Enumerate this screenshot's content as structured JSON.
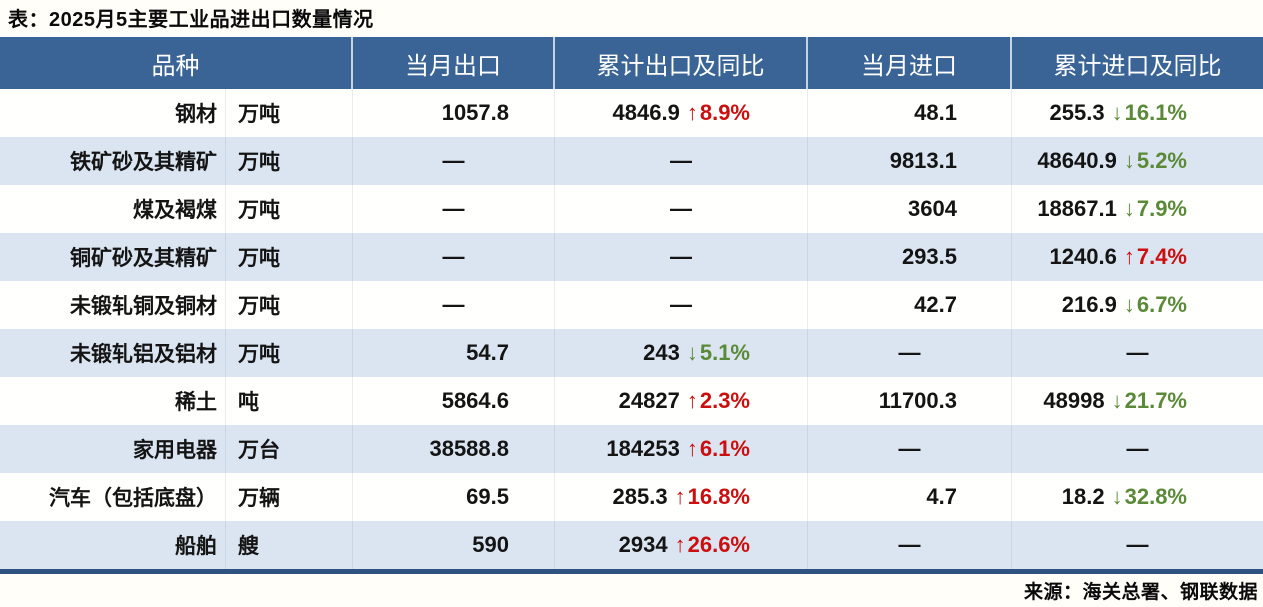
{
  "title": "表：2025月5主要工业品进出口数量情况",
  "source": "来源：海关总署、钢联数据",
  "colors": {
    "header_bg": "#3a6496",
    "stripe_bg": "#dbe5f1",
    "white_row_bg": "#fffffd",
    "up_red": "#cb0e0e",
    "down_green": "#5a8a38",
    "bottom_bar": "#2e5380"
  },
  "chart_data": {
    "type": "table",
    "title": "表：2025月5主要工业品进出口数量情况",
    "columns": [
      "品种",
      "当月出口",
      "累计出口及同比",
      "当月进口",
      "累计进口及同比"
    ],
    "up_arrow": "↑",
    "down_arrow": "↓",
    "dash": "—",
    "rows": [
      {
        "name": "钢材",
        "unit": "万吨",
        "cells": [
          {
            "v": "1057.8"
          },
          {
            "v": "4846.9",
            "yoy": "8.9%",
            "dir": "up"
          },
          {
            "v": "48.1"
          },
          {
            "v": "255.3",
            "yoy": "16.1%",
            "dir": "down"
          }
        ]
      },
      {
        "name": "铁矿砂及其精矿",
        "unit": "万吨",
        "cells": [
          {
            "v": "—"
          },
          {
            "v": "—"
          },
          {
            "v": "9813.1"
          },
          {
            "v": "48640.9",
            "yoy": "5.2%",
            "dir": "down"
          }
        ]
      },
      {
        "name": "煤及褐煤",
        "unit": "万吨",
        "cells": [
          {
            "v": "—"
          },
          {
            "v": "—"
          },
          {
            "v": "3604"
          },
          {
            "v": "18867.1",
            "yoy": "7.9%",
            "dir": "down"
          }
        ]
      },
      {
        "name": "铜矿砂及其精矿",
        "unit": "万吨",
        "cells": [
          {
            "v": "—"
          },
          {
            "v": "—"
          },
          {
            "v": "293.5"
          },
          {
            "v": "1240.6",
            "yoy": "7.4%",
            "dir": "up"
          }
        ]
      },
      {
        "name": "未锻轧铜及铜材",
        "unit": "万吨",
        "cells": [
          {
            "v": "—"
          },
          {
            "v": "—"
          },
          {
            "v": "42.7"
          },
          {
            "v": "216.9",
            "yoy": "6.7%",
            "dir": "down"
          }
        ]
      },
      {
        "name": "未锻轧铝及铝材",
        "unit": "万吨",
        "cells": [
          {
            "v": "54.7"
          },
          {
            "v": "243",
            "yoy": "5.1%",
            "dir": "down"
          },
          {
            "v": "—"
          },
          {
            "v": "—"
          }
        ]
      },
      {
        "name": "稀土",
        "unit": "吨",
        "cells": [
          {
            "v": "5864.6"
          },
          {
            "v": "24827",
            "yoy": "2.3%",
            "dir": "up"
          },
          {
            "v": "11700.3"
          },
          {
            "v": "48998",
            "yoy": "21.7%",
            "dir": "down"
          }
        ]
      },
      {
        "name": "家用电器",
        "unit": "万台",
        "cells": [
          {
            "v": "38588.8"
          },
          {
            "v": "184253",
            "yoy": "6.1%",
            "dir": "up"
          },
          {
            "v": "—"
          },
          {
            "v": "—"
          }
        ]
      },
      {
        "name": "汽车（包括底盘）",
        "unit": "万辆",
        "cells": [
          {
            "v": "69.5"
          },
          {
            "v": "285.3",
            "yoy": "16.8%",
            "dir": "up"
          },
          {
            "v": "4.7"
          },
          {
            "v": "18.2",
            "yoy": "32.8%",
            "dir": "down"
          }
        ]
      },
      {
        "name": "船舶",
        "unit": "艘",
        "cells": [
          {
            "v": "590"
          },
          {
            "v": "2934",
            "yoy": "26.6%",
            "dir": "up"
          },
          {
            "v": "—"
          },
          {
            "v": "—"
          }
        ]
      }
    ]
  }
}
